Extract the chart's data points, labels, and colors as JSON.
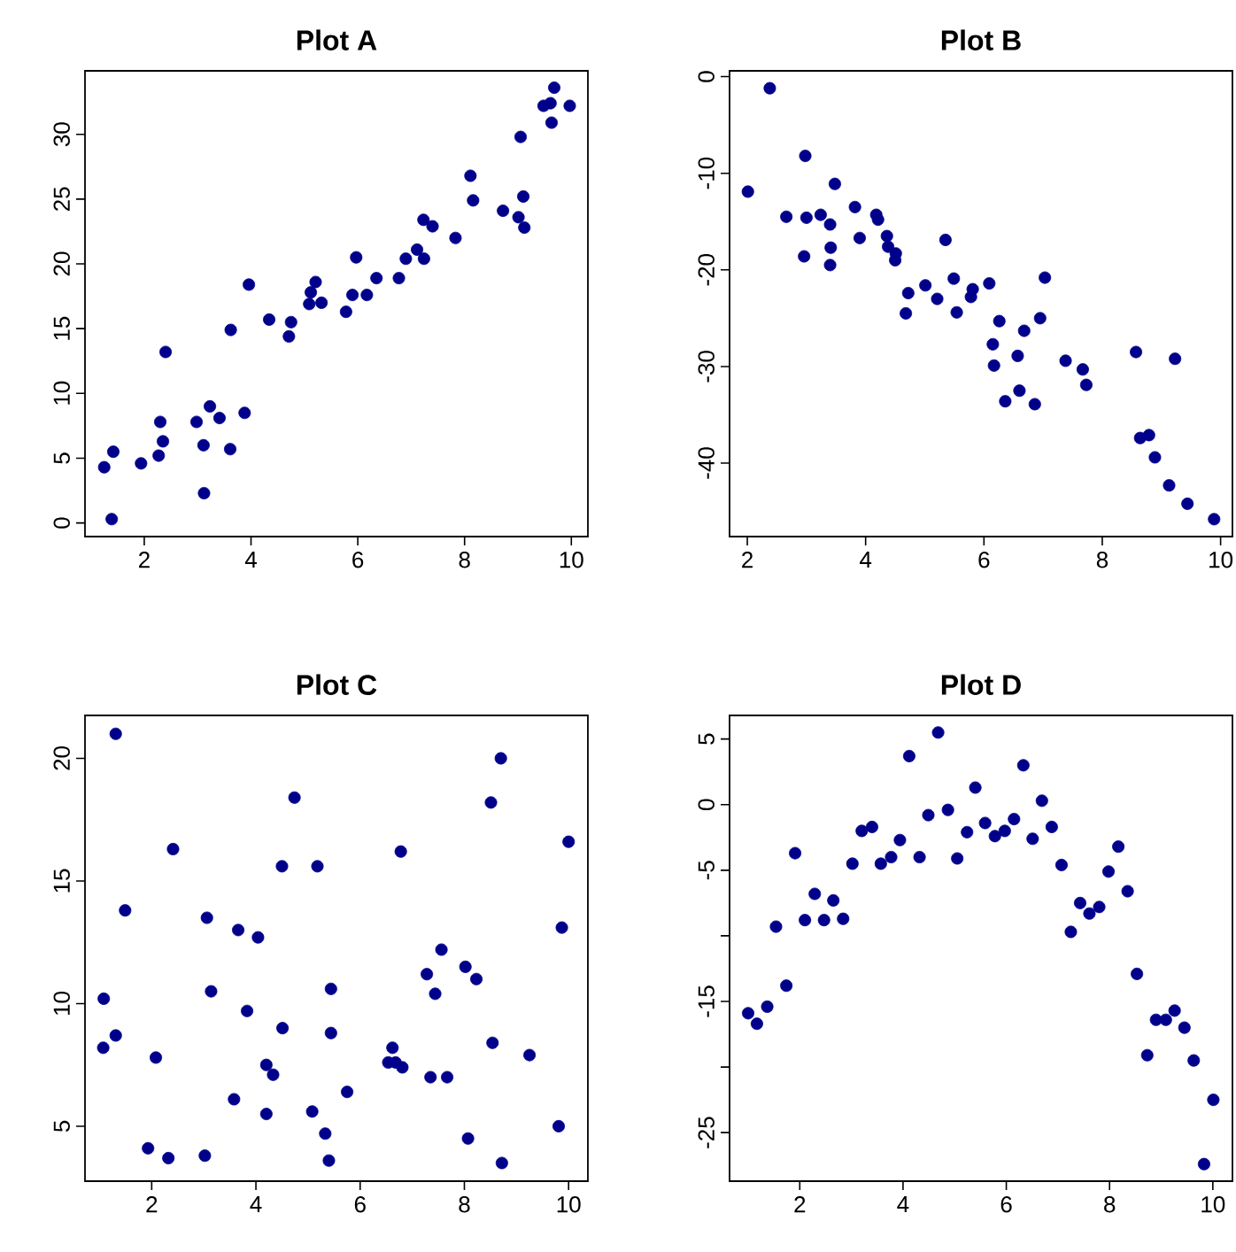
{
  "chart_data": [
    {
      "type": "scatter",
      "title": "Plot A",
      "color": "#00008b",
      "marker": "circle",
      "xlim": [
        0.89,
        10.31
      ],
      "ylim": [
        -1.05,
        34.9
      ],
      "xticks": [
        2,
        4,
        6,
        8,
        10
      ],
      "yticks": [
        0,
        5,
        10,
        15,
        20,
        25,
        30
      ],
      "x": [
        1.25,
        1.42,
        1.39,
        1.94,
        2.27,
        2.3,
        2.35,
        2.4,
        2.98,
        3.12,
        3.11,
        3.23,
        3.41,
        3.61,
        3.62,
        3.88,
        3.96,
        4.34,
        4.71,
        4.75,
        5.12,
        5.21,
        5.09,
        5.32,
        5.78,
        5.9,
        5.97,
        6.17,
        6.35,
        6.77,
        6.9,
        7.11,
        7.24,
        7.23,
        7.4,
        7.83,
        8.11,
        8.16,
        8.72,
        9.01,
        9.05,
        9.1,
        9.12,
        9.48,
        9.61,
        9.63,
        9.68,
        9.97
      ],
      "values": [
        4.3,
        5.5,
        0.3,
        4.6,
        5.2,
        7.8,
        6.3,
        13.2,
        7.8,
        2.3,
        6.0,
        9.0,
        8.1,
        5.7,
        14.9,
        8.5,
        18.4,
        15.7,
        14.4,
        15.5,
        17.8,
        18.6,
        16.9,
        17.0,
        16.3,
        17.6,
        20.5,
        17.6,
        18.9,
        18.9,
        20.4,
        21.1,
        20.4,
        23.4,
        22.9,
        22.0,
        26.8,
        24.9,
        24.1,
        23.6,
        29.8,
        25.2,
        22.8,
        32.2,
        32.4,
        30.9,
        33.6,
        32.2
      ]
    },
    {
      "type": "scatter",
      "title": "Plot B",
      "color": "#00008b",
      "marker": "circle",
      "xlim": [
        1.7,
        10.2
      ],
      "ylim": [
        -47.6,
        0.6
      ],
      "xticks": [
        2,
        4,
        6,
        8,
        10
      ],
      "yticks": [
        -40,
        -30,
        -20,
        -10,
        0
      ],
      "x": [
        2.01,
        2.38,
        2.66,
        2.98,
        3.0,
        2.96,
        3.24,
        3.4,
        3.41,
        3.4,
        3.48,
        3.82,
        3.9,
        4.18,
        4.21,
        4.36,
        4.38,
        4.51,
        4.5,
        4.68,
        4.72,
        5.01,
        5.21,
        5.35,
        5.49,
        5.54,
        5.78,
        5.81,
        6.09,
        6.15,
        6.17,
        6.26,
        6.36,
        6.57,
        6.6,
        6.68,
        6.86,
        6.95,
        7.03,
        7.38,
        7.67,
        7.73,
        8.57,
        8.64,
        8.79,
        8.89,
        9.23,
        9.13,
        9.44,
        9.89
      ],
      "values": [
        -11.9,
        -1.2,
        -14.5,
        -8.2,
        -14.6,
        -18.6,
        -14.3,
        -15.3,
        -17.7,
        -19.5,
        -11.1,
        -13.5,
        -16.7,
        -14.3,
        -14.8,
        -16.5,
        -17.6,
        -18.3,
        -19.0,
        -24.5,
        -22.4,
        -21.6,
        -23.0,
        -16.9,
        -20.9,
        -24.4,
        -22.8,
        -22.0,
        -21.4,
        -27.7,
        -29.9,
        -25.3,
        -33.6,
        -28.9,
        -32.5,
        -26.3,
        -33.9,
        -25.0,
        -20.8,
        -29.4,
        -30.3,
        -31.9,
        -28.5,
        -37.4,
        -37.1,
        -39.4,
        -29.2,
        -42.3,
        -44.2,
        -45.8
      ]
    },
    {
      "type": "scatter",
      "title": "Plot C",
      "color": "#00008b",
      "marker": "circle",
      "xlim": [
        0.72,
        10.37
      ],
      "ylim": [
        2.76,
        21.75
      ],
      "xticks": [
        2,
        4,
        6,
        8,
        10
      ],
      "yticks": [
        5,
        10,
        15,
        20
      ],
      "x": [
        1.08,
        1.07,
        1.31,
        1.31,
        1.49,
        1.93,
        2.08,
        2.32,
        2.41,
        3.02,
        3.06,
        3.14,
        3.58,
        3.66,
        3.83,
        4.04,
        4.2,
        4.2,
        4.33,
        4.5,
        4.51,
        4.74,
        5.08,
        5.18,
        5.33,
        5.4,
        5.44,
        5.44,
        5.75,
        6.54,
        6.62,
        6.68,
        6.81,
        6.78,
        7.28,
        7.35,
        7.44,
        7.56,
        7.67,
        8.02,
        8.07,
        8.23,
        8.51,
        8.54,
        8.7,
        8.72,
        9.25,
        9.81,
        9.87,
        10.0
      ],
      "values": [
        10.2,
        8.2,
        21.0,
        8.7,
        13.8,
        4.1,
        7.8,
        3.7,
        16.3,
        3.8,
        13.5,
        10.5,
        6.1,
        13.0,
        9.7,
        12.7,
        5.5,
        7.5,
        7.1,
        15.6,
        9.0,
        18.4,
        5.6,
        15.6,
        4.7,
        3.6,
        10.6,
        8.8,
        6.4,
        7.6,
        8.2,
        7.6,
        7.4,
        16.2,
        11.2,
        7.0,
        10.4,
        12.2,
        7.0,
        11.5,
        4.5,
        11.0,
        18.2,
        8.4,
        20.0,
        3.5,
        7.9,
        5.0,
        13.1,
        16.6
      ]
    },
    {
      "type": "scatter",
      "title": "Plot D",
      "color": "#00008b",
      "marker": "circle",
      "xlim": [
        0.64,
        10.38
      ],
      "ylim": [
        -28.7,
        6.8
      ],
      "xticks": [
        2,
        4,
        6,
        8,
        10
      ],
      "yticks": [
        -25,
        {
          "value": -20,
          "label": null
        },
        -15,
        {
          "value": -10,
          "label": null
        },
        -5,
        0,
        5
      ],
      "x": [
        1.0,
        1.17,
        1.37,
        1.54,
        1.74,
        1.91,
        2.1,
        2.29,
        2.47,
        2.65,
        2.84,
        3.02,
        3.2,
        3.4,
        3.57,
        3.77,
        3.94,
        4.12,
        4.32,
        4.49,
        4.68,
        4.87,
        5.05,
        5.24,
        5.4,
        5.59,
        5.78,
        5.97,
        6.15,
        6.33,
        6.51,
        6.69,
        6.88,
        7.07,
        7.25,
        7.43,
        7.61,
        7.8,
        7.98,
        8.17,
        8.35,
        8.53,
        8.73,
        8.9,
        9.09,
        9.26,
        9.45,
        9.63,
        9.83,
        10.01
      ],
      "values": [
        -15.9,
        -16.7,
        -15.4,
        -9.3,
        -13.8,
        -3.7,
        -8.8,
        -6.8,
        -8.8,
        -7.3,
        -8.7,
        -4.5,
        -2.0,
        -1.7,
        -4.5,
        -4.0,
        -2.7,
        3.7,
        -4.0,
        -0.8,
        5.5,
        -0.4,
        -4.1,
        -2.1,
        1.3,
        -1.4,
        -2.4,
        -2.0,
        -1.1,
        3.0,
        -2.6,
        0.3,
        -1.7,
        -4.6,
        -9.7,
        -7.5,
        -8.3,
        -7.8,
        -5.1,
        -3.2,
        -6.6,
        -12.9,
        -19.1,
        -16.4,
        -16.4,
        -15.7,
        -17.0,
        -19.5,
        -27.4,
        -22.5
      ]
    }
  ]
}
